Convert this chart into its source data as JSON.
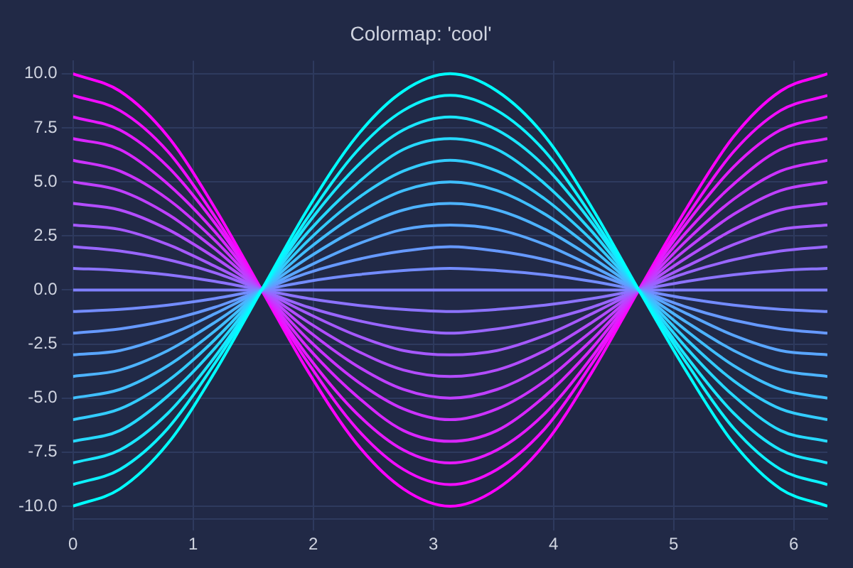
{
  "chart_data": {
    "type": "line",
    "title": "Colormap: 'cool'",
    "x": [
      0,
      0.39,
      0.79,
      1.18,
      1.57,
      1.96,
      2.36,
      2.75,
      3.14,
      3.53,
      3.93,
      4.32,
      4.71,
      5.11,
      5.5,
      5.89,
      6.28
    ],
    "series": [
      {
        "color": "#00ffff",
        "values": [
          -10,
          -9.2,
          -7.1,
          -3.8,
          0,
          3.8,
          7.1,
          9.2,
          10,
          9.2,
          7.1,
          3.8,
          0,
          -3.8,
          -7.1,
          -9.2,
          -10
        ]
      },
      {
        "color": "#0df2ff",
        "values": [
          -9,
          -8.3,
          -6.4,
          -3.4,
          0,
          3.4,
          6.4,
          8.3,
          9,
          8.3,
          6.4,
          3.4,
          0,
          -3.4,
          -6.4,
          -8.3,
          -9
        ]
      },
      {
        "color": "#1ae6ff",
        "values": [
          -8,
          -7.4,
          -5.7,
          -3.1,
          0,
          3.1,
          5.7,
          7.4,
          8,
          7.4,
          5.7,
          3.1,
          0,
          -3.1,
          -5.7,
          -7.4,
          -8
        ]
      },
      {
        "color": "#26d9ff",
        "values": [
          -7,
          -6.5,
          -4.9,
          -2.7,
          0,
          2.7,
          4.9,
          6.5,
          7,
          6.5,
          4.9,
          2.7,
          0,
          -2.7,
          -4.9,
          -6.5,
          -7
        ]
      },
      {
        "color": "#33ccff",
        "values": [
          -6,
          -5.5,
          -4.2,
          -2.3,
          0,
          2.3,
          4.2,
          5.5,
          6,
          5.5,
          4.2,
          2.3,
          0,
          -2.3,
          -4.2,
          -5.5,
          -6
        ]
      },
      {
        "color": "#40bfff",
        "values": [
          -5,
          -4.6,
          -3.5,
          -1.9,
          0,
          1.9,
          3.5,
          4.6,
          5,
          4.6,
          3.5,
          1.9,
          0,
          -1.9,
          -3.5,
          -4.6,
          -5
        ]
      },
      {
        "color": "#4db3ff",
        "values": [
          -4,
          -3.7,
          -2.8,
          -1.5,
          0,
          1.5,
          2.8,
          3.7,
          4,
          3.7,
          2.8,
          1.5,
          0,
          -1.5,
          -2.8,
          -3.7,
          -4
        ]
      },
      {
        "color": "#59a6ff",
        "values": [
          -3,
          -2.8,
          -2.1,
          -1.1,
          0,
          1.1,
          2.1,
          2.8,
          3,
          2.8,
          2.1,
          1.1,
          0,
          -1.1,
          -2.1,
          -2.8,
          -3
        ]
      },
      {
        "color": "#6699ff",
        "values": [
          -2,
          -1.8,
          -1.4,
          -0.8,
          0,
          0.8,
          1.4,
          1.8,
          2,
          1.8,
          1.4,
          0.8,
          0,
          -0.8,
          -1.4,
          -1.8,
          -2
        ]
      },
      {
        "color": "#738cff",
        "values": [
          -1,
          -0.9,
          -0.7,
          -0.4,
          0,
          0.4,
          0.7,
          0.9,
          1,
          0.9,
          0.7,
          0.4,
          0,
          -0.4,
          -0.7,
          -0.9,
          -1
        ]
      },
      {
        "color": "#8080ff",
        "values": [
          0,
          0,
          0,
          0,
          0,
          0,
          0,
          0,
          0,
          0,
          0,
          0,
          0,
          0,
          0,
          0,
          0
        ]
      },
      {
        "color": "#8c73ff",
        "values": [
          1,
          0.9,
          0.7,
          0.4,
          0,
          -0.4,
          -0.7,
          -0.9,
          -1,
          -0.9,
          -0.7,
          -0.4,
          0,
          0.4,
          0.7,
          0.9,
          1
        ]
      },
      {
        "color": "#9966ff",
        "values": [
          2,
          1.8,
          1.4,
          0.8,
          0,
          -0.8,
          -1.4,
          -1.8,
          -2,
          -1.8,
          -1.4,
          -0.8,
          0,
          0.8,
          1.4,
          1.8,
          2
        ]
      },
      {
        "color": "#a659ff",
        "values": [
          3,
          2.8,
          2.1,
          1.1,
          0,
          -1.1,
          -2.1,
          -2.8,
          -3,
          -2.8,
          -2.1,
          -1.1,
          0,
          1.1,
          2.1,
          2.8,
          3
        ]
      },
      {
        "color": "#b34dff",
        "values": [
          4,
          3.7,
          2.8,
          1.5,
          0,
          -1.5,
          -2.8,
          -3.7,
          -4,
          -3.7,
          -2.8,
          -1.5,
          0,
          1.5,
          2.8,
          3.7,
          4
        ]
      },
      {
        "color": "#bf40ff",
        "values": [
          5,
          4.6,
          3.5,
          1.9,
          0,
          -1.9,
          -3.5,
          -4.6,
          -5,
          -4.6,
          -3.5,
          -1.9,
          0,
          1.9,
          3.5,
          4.6,
          5
        ]
      },
      {
        "color": "#cc33ff",
        "values": [
          6,
          5.5,
          4.2,
          2.3,
          0,
          -2.3,
          -4.2,
          -5.5,
          -6,
          -5.5,
          -4.2,
          -2.3,
          0,
          2.3,
          4.2,
          5.5,
          6
        ]
      },
      {
        "color": "#d926ff",
        "values": [
          7,
          6.5,
          4.9,
          2.7,
          0,
          -2.7,
          -4.9,
          -6.5,
          -7,
          -6.5,
          -4.9,
          -2.7,
          0,
          2.7,
          4.9,
          6.5,
          7
        ]
      },
      {
        "color": "#e61aff",
        "values": [
          8,
          7.4,
          5.7,
          3.1,
          0,
          -3.1,
          -5.7,
          -7.4,
          -8,
          -7.4,
          -5.7,
          -3.1,
          0,
          3.1,
          5.7,
          7.4,
          8
        ]
      },
      {
        "color": "#f20dff",
        "values": [
          9,
          8.3,
          6.4,
          3.4,
          0,
          -3.4,
          -6.4,
          -8.3,
          -9,
          -8.3,
          -6.4,
          -3.4,
          0,
          3.4,
          6.4,
          8.3,
          9
        ]
      },
      {
        "color": "#ff00ff",
        "values": [
          10,
          9.2,
          7.1,
          3.8,
          0,
          -3.8,
          -7.1,
          -9.2,
          -10,
          -9.2,
          -7.1,
          -3.8,
          0,
          3.8,
          7.1,
          9.2,
          10
        ]
      }
    ],
    "xlim": [
      0,
      6.28
    ],
    "xticks": [
      0,
      1,
      2,
      3,
      4,
      5,
      6
    ],
    "ylim": [
      -10.6,
      10.6
    ],
    "yticks": [
      {
        "value": -10,
        "label": "-10.0"
      },
      {
        "value": -7.5,
        "label": "-7.5"
      },
      {
        "value": -5,
        "label": "-5.0"
      },
      {
        "value": -2.5,
        "label": "-2.5"
      },
      {
        "value": 0,
        "label": "0.0"
      },
      {
        "value": 2.5,
        "label": "2.5"
      },
      {
        "value": 5,
        "label": "5.0"
      },
      {
        "value": 7.5,
        "label": "7.5"
      },
      {
        "value": 10,
        "label": "10.0"
      }
    ],
    "grid": true,
    "legend": false
  }
}
